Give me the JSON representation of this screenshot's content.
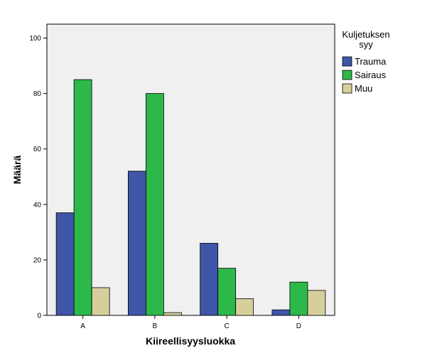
{
  "chart_data": {
    "type": "bar",
    "xlabel": "Kiireellisyysluokka",
    "ylabel": "Määrä",
    "categories": [
      "A",
      "B",
      "C",
      "D"
    ],
    "ylim": [
      0,
      105
    ],
    "yticks": [
      0,
      20,
      40,
      60,
      80,
      100
    ],
    "grid": false,
    "legend": {
      "title_lines": [
        "Kuljetuksen",
        "syy"
      ],
      "placement": "right"
    },
    "series": [
      {
        "name": "Trauma",
        "color": "#3F56A8",
        "values": [
          37,
          52,
          26,
          2
        ]
      },
      {
        "name": "Sairaus",
        "color": "#2DB84A",
        "values": [
          85,
          80,
          17,
          12
        ]
      },
      {
        "name": "Muu",
        "color": "#D5CF9E",
        "values": [
          10,
          1,
          6,
          9
        ]
      }
    ],
    "plot_background": "#F0F0F0"
  }
}
